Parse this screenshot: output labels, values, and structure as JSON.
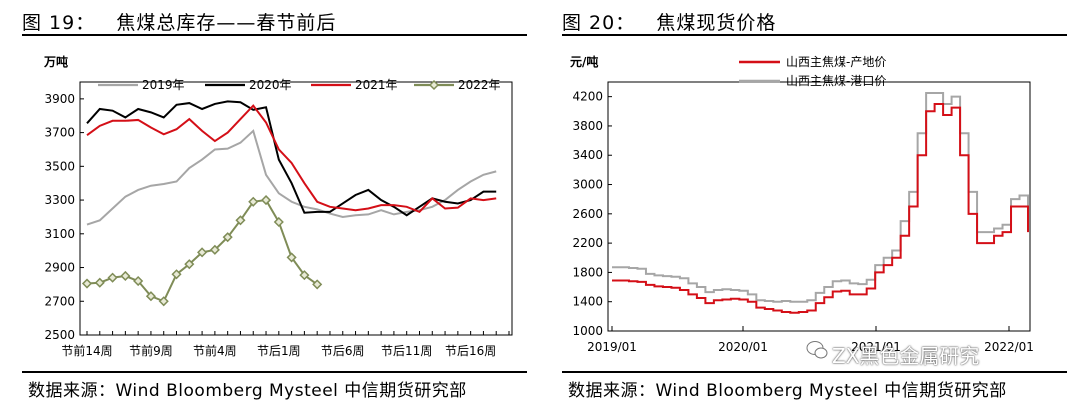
{
  "left": {
    "figure_title": "图 19：   焦煤总库存——春节前后",
    "source": "数据来源：Wind Bloomberg Mysteel 中信期货研究部"
  },
  "right": {
    "figure_title": "图 20：   焦煤现货价格",
    "source": "数据来源：Wind Bloomberg Mysteel 中信期货研究部",
    "watermark": "ZX黑色金属研究"
  },
  "chart_data": [
    {
      "type": "line",
      "title": "焦煤总库存——春节前后",
      "ylabel": "万吨",
      "ylim": [
        2500,
        4000
      ],
      "yticks": [
        2500,
        2700,
        2900,
        3100,
        3300,
        3500,
        3700,
        3900
      ],
      "x_count": 34,
      "xtick_labels": [
        {
          "i": 0,
          "label": "节前14周"
        },
        {
          "i": 5,
          "label": "节前9周"
        },
        {
          "i": 10,
          "label": "节前4周"
        },
        {
          "i": 15,
          "label": "节后1周"
        },
        {
          "i": 20,
          "label": "节后6周"
        },
        {
          "i": 25,
          "label": "节后11周"
        },
        {
          "i": 30,
          "label": "节后16周"
        }
      ],
      "legend_position": "top",
      "series": [
        {
          "name": "2019年",
          "color": "#a6a6a6",
          "marker": "none",
          "values": [
            3155,
            3180,
            3250,
            3320,
            3360,
            3385,
            3395,
            3410,
            3490,
            3540,
            3600,
            3605,
            3640,
            3710,
            3450,
            3340,
            3290,
            3260,
            3245,
            3220,
            3200,
            3210,
            3215,
            3240,
            3215,
            3230,
            3240,
            3260,
            3300,
            3360,
            3410,
            3450,
            3470
          ]
        },
        {
          "name": "2020年",
          "color": "#000000",
          "marker": "none",
          "values": [
            3755,
            3840,
            3830,
            3790,
            3840,
            3820,
            3790,
            3865,
            3875,
            3840,
            3870,
            3885,
            3880,
            3835,
            3850,
            3540,
            3400,
            3225,
            3230,
            3230,
            3280,
            3330,
            3360,
            3300,
            3260,
            3210,
            3260,
            3310,
            3290,
            3280,
            3300,
            3350,
            3350
          ]
        },
        {
          "name": "2021年",
          "color": "#d40f17",
          "marker": "none",
          "values": [
            3685,
            3740,
            3770,
            3770,
            3775,
            3730,
            3690,
            3720,
            3780,
            3710,
            3650,
            3700,
            3780,
            3860,
            3760,
            3600,
            3520,
            3400,
            3290,
            3260,
            3250,
            3240,
            3250,
            3270,
            3270,
            3260,
            3230,
            3310,
            3250,
            3255,
            3310,
            3300,
            3310
          ]
        },
        {
          "name": "2022年",
          "color": "#7f8c57",
          "marker": "diamond",
          "values": [
            2805,
            2810,
            2840,
            2850,
            2820,
            2730,
            2700,
            2860,
            2920,
            2990,
            3005,
            3080,
            3180,
            3290,
            3300,
            3170,
            2960,
            2855,
            2800
          ]
        }
      ]
    },
    {
      "type": "line",
      "title": "焦煤现货价格",
      "ylabel": "元/吨",
      "ylim": [
        1000,
        4400
      ],
      "yticks": [
        1000,
        1400,
        1800,
        2200,
        2600,
        3000,
        3400,
        3800,
        4200
      ],
      "xtick_labels": [
        "2019/01",
        "2020/01",
        "2021/01",
        "2022/01"
      ],
      "legend_position": "top-left",
      "series": [
        {
          "name": "山西主焦煤-产地价",
          "color": "#d40f17",
          "values": [
            1690,
            1690,
            1680,
            1670,
            1630,
            1610,
            1600,
            1590,
            1560,
            1500,
            1450,
            1380,
            1420,
            1430,
            1440,
            1430,
            1400,
            1320,
            1300,
            1280,
            1260,
            1250,
            1260,
            1280,
            1380,
            1460,
            1540,
            1550,
            1500,
            1500,
            1580,
            1800,
            1900,
            2000,
            2300,
            2700,
            3400,
            4000,
            4100,
            3950,
            4050,
            3400,
            2600,
            2200,
            2200,
            2300,
            2350,
            2700,
            2700,
            2350
          ]
        },
        {
          "name": "山西主焦煤-港口价",
          "color": "#a6a6a6",
          "values": [
            1870,
            1870,
            1860,
            1850,
            1780,
            1760,
            1750,
            1740,
            1720,
            1650,
            1600,
            1530,
            1560,
            1570,
            1560,
            1550,
            1500,
            1420,
            1410,
            1400,
            1410,
            1400,
            1400,
            1420,
            1520,
            1600,
            1680,
            1690,
            1650,
            1640,
            1700,
            1900,
            2000,
            2100,
            2500,
            2900,
            3700,
            4250,
            4250,
            4100,
            4200,
            3700,
            2900,
            2350,
            2350,
            2400,
            2450,
            2800,
            2850,
            2650
          ]
        }
      ]
    }
  ]
}
